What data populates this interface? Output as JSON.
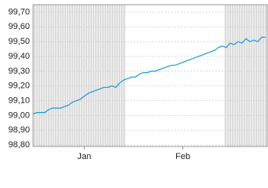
{
  "chart_data": {
    "type": "line",
    "categories": [
      null,
      null,
      null,
      null,
      null,
      null,
      null,
      null,
      null,
      null,
      null,
      null,
      null,
      "Jan",
      null,
      null,
      null,
      null,
      null,
      null,
      null,
      null,
      null,
      null,
      null,
      null,
      null,
      null,
      null,
      null,
      null,
      null,
      null,
      null,
      null,
      null,
      null,
      null,
      "Feb",
      null,
      null,
      null,
      null,
      null,
      null,
      null,
      null,
      null,
      null,
      null,
      null,
      null,
      null,
      null,
      null,
      null,
      null,
      null,
      null,
      null
    ],
    "series": [
      {
        "color": "#1a9ad6",
        "values": [
          99.01,
          99.02,
          99.02,
          99.02,
          99.04,
          99.05,
          99.05,
          99.05,
          99.06,
          99.07,
          99.09,
          99.1,
          99.11,
          99.13,
          99.15,
          99.16,
          99.17,
          99.18,
          99.19,
          99.19,
          99.2,
          99.19,
          99.22,
          99.24,
          99.25,
          99.26,
          99.26,
          99.28,
          99.29,
          99.29,
          99.3,
          99.3,
          99.31,
          99.32,
          99.33,
          99.34,
          99.34,
          99.35,
          99.36,
          99.37,
          99.38,
          99.39,
          99.4,
          99.41,
          99.42,
          99.43,
          99.44,
          99.46,
          99.47,
          99.46,
          99.49,
          99.48,
          99.5,
          99.49,
          99.52,
          99.5,
          99.51,
          99.5,
          99.53,
          99.53
        ]
      }
    ],
    "ylim": [
      98.79,
      99.75
    ],
    "yticks": [
      {
        "value": 98.8,
        "label": "98,80"
      },
      {
        "value": 98.9,
        "label": "98,90"
      },
      {
        "value": 99.0,
        "label": "99,00"
      },
      {
        "value": 99.1,
        "label": "99,10"
      },
      {
        "value": 99.2,
        "label": "99,20"
      },
      {
        "value": 99.3,
        "label": "99,30"
      },
      {
        "value": 99.4,
        "label": "99,40"
      },
      {
        "value": 99.5,
        "label": "99,50"
      },
      {
        "value": 99.6,
        "label": "99,60"
      },
      {
        "value": 99.7,
        "label": "99,70"
      }
    ],
    "grid": true
  }
}
